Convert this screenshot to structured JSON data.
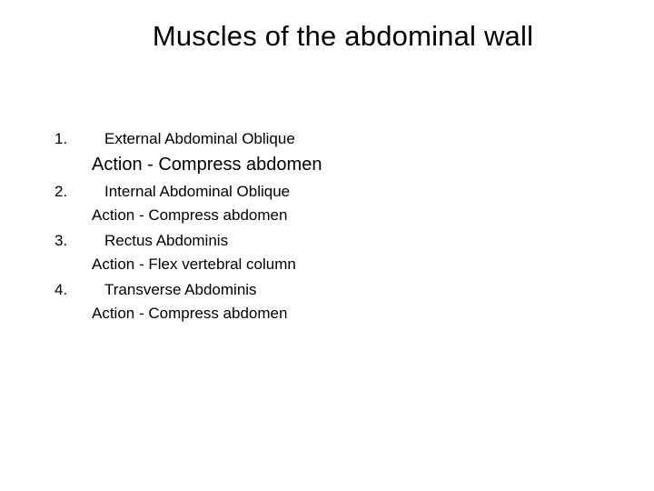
{
  "title": "Muscles of the abdominal wall",
  "title_fontsize": 31,
  "body_fontsize": 17,
  "action_large_fontsize": 20,
  "background_color": "#ffffff",
  "text_color": "#000000",
  "items": [
    {
      "num": "1.",
      "name": "External Abdominal Oblique",
      "action": "Action - Compress abdomen",
      "action_large": true
    },
    {
      "num": "2.",
      "name": "Internal  Abdominal Oblique",
      "action": "Action -  Compress abdomen",
      "action_large": false
    },
    {
      "num": "3.",
      "name": "Rectus  Abdominis",
      "action": "Action -  Flex vertebral column",
      "action_large": false
    },
    {
      "num": "4.",
      "name": "Transverse Abdominis",
      "action": "Action -  Compress abdomen",
      "action_large": false
    }
  ]
}
